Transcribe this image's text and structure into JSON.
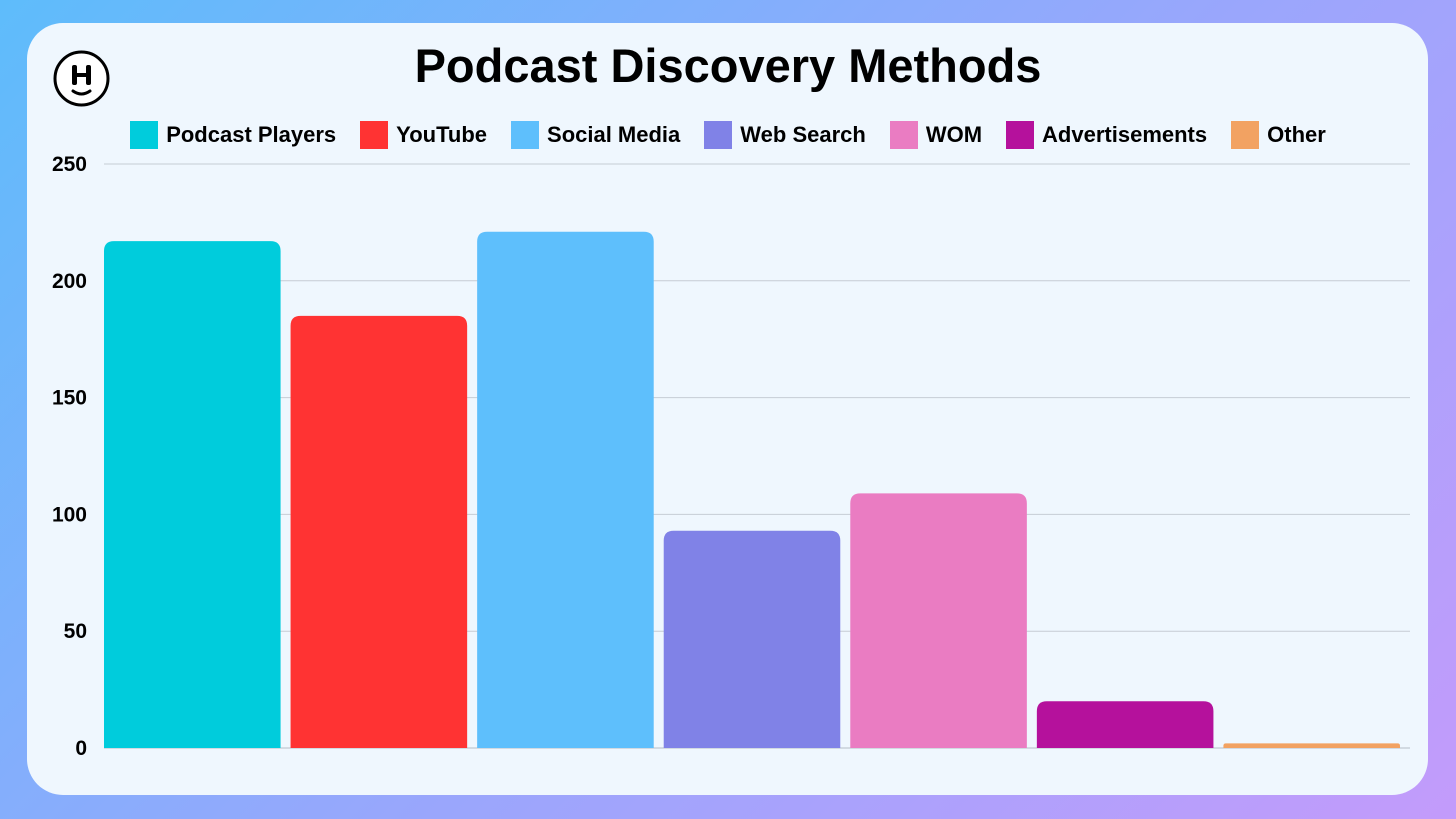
{
  "chart_data": {
    "type": "bar",
    "title": "Podcast Discovery Methods",
    "xlabel": "",
    "ylabel": "",
    "ylim": [
      0,
      250
    ],
    "yticks": [
      0,
      50,
      100,
      150,
      200,
      250
    ],
    "grid": true,
    "legend_placement": "top-center",
    "categories": [
      "Podcast Players",
      "YouTube",
      "Social Media",
      "Web Search",
      "WOM",
      "Advertisements",
      "Other"
    ],
    "values": [
      217,
      185,
      221,
      93,
      109,
      20,
      2
    ],
    "colors": [
      "#00ccdc",
      "#ff3333",
      "#5ebffc",
      "#8082e7",
      "#ea7cc2",
      "#b5119c",
      "#f2a262"
    ]
  },
  "logo": {
    "icon": "smiley-h-logo-icon"
  }
}
